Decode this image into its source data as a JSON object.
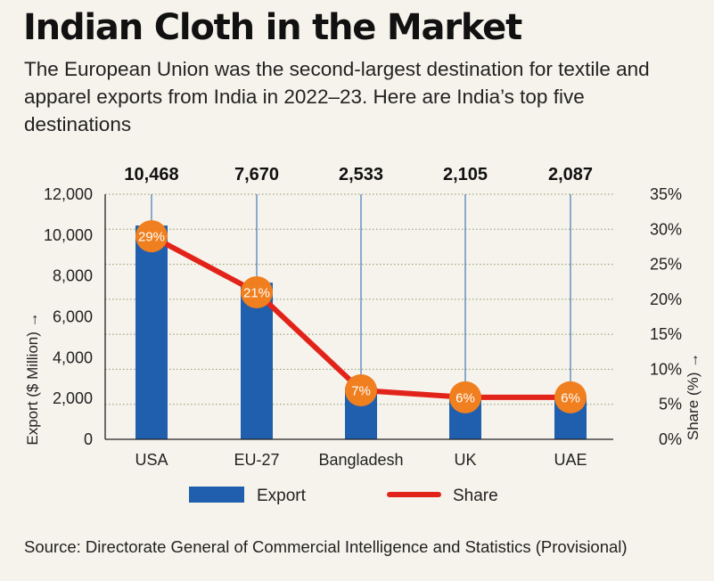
{
  "title": "Indian Cloth in the Market",
  "subtitle": "The European Union was the second-largest destination for textile and apparel exports from India in 2022–23. Here are India’s top five destinations",
  "source": "Source: Directorate General of Commercial Intelligence and Statistics (Provisional)",
  "colors": {
    "bar": "#1f5fad",
    "line": "#e2231a",
    "marker": "#f07f1f",
    "grid": "#8a9a6a",
    "background": "#f6f3ec"
  },
  "chart_data": {
    "type": "bar",
    "categories": [
      "USA",
      "EU-27",
      "Bangladesh",
      "UK",
      "UAE"
    ],
    "series": [
      {
        "name": "Export",
        "type": "bar",
        "axis": "left",
        "values": [
          10468,
          7670,
          2533,
          2105,
          2087
        ],
        "value_labels": [
          "10,468",
          "7,670",
          "2,533",
          "2,105",
          "2,087"
        ]
      },
      {
        "name": "Share",
        "type": "line",
        "axis": "right",
        "values": [
          29,
          21,
          7,
          6,
          6
        ],
        "value_labels": [
          "29%",
          "21%",
          "7%",
          "6%",
          "6%"
        ]
      }
    ],
    "ylabel": "Export ($ Million) →",
    "ylim": [
      0,
      12000
    ],
    "yticks": [
      "0",
      "2,000",
      "4,000",
      "6,000",
      "8,000",
      "10,000",
      "12,000"
    ],
    "y2label": "Share (%) →",
    "y2lim": [
      0,
      35
    ],
    "y2ticks": [
      "0%",
      "5%",
      "10%",
      "15%",
      "20%",
      "25%",
      "30%",
      "35%"
    ],
    "grid": true,
    "legend_position": "bottom"
  }
}
